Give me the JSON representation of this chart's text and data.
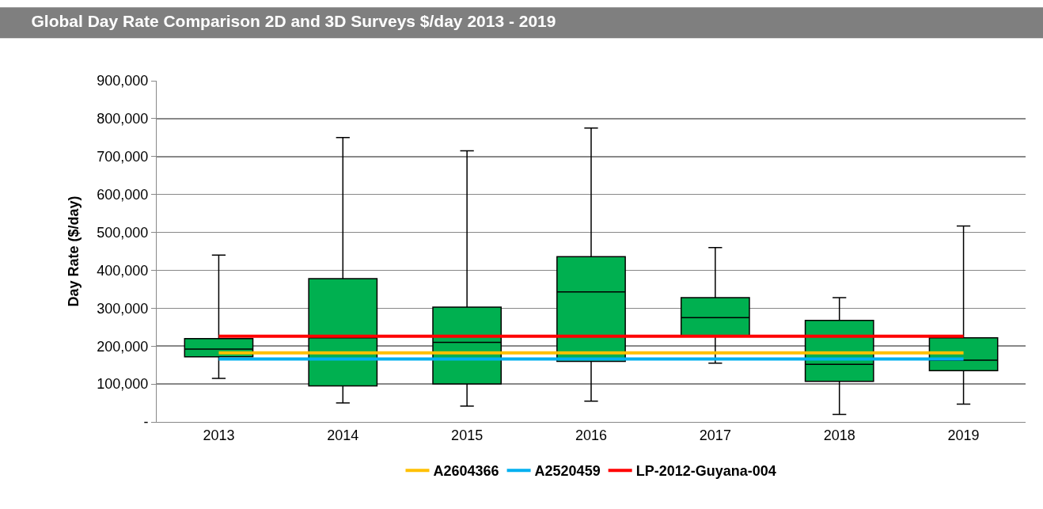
{
  "chart_data": {
    "type": "box",
    "title": "Global Day Rate Comparison 2D and 3D Surveys $/day 2013 - 2019",
    "ylabel": "Day Rate ($/day)",
    "categories": [
      "2013",
      "2014",
      "2015",
      "2016",
      "2017",
      "2018",
      "2019"
    ],
    "ylim": [
      0,
      900000
    ],
    "yticks": [
      {
        "value": 0,
        "label": "-"
      },
      {
        "value": 100000,
        "label": "100,000"
      },
      {
        "value": 200000,
        "label": "200,000"
      },
      {
        "value": 300000,
        "label": "300,000"
      },
      {
        "value": 400000,
        "label": "400,000"
      },
      {
        "value": 500000,
        "label": "500,000"
      },
      {
        "value": 600000,
        "label": "600,000"
      },
      {
        "value": 700000,
        "label": "700,000"
      },
      {
        "value": 800000,
        "label": "800,000"
      },
      {
        "value": 900000,
        "label": "900,000"
      }
    ],
    "grid": "y",
    "legend": "bottom",
    "series": [
      {
        "color": "#00b050",
        "boxes": [
          {
            "low": 115000,
            "q1": 172000,
            "median": 192000,
            "q3": 220000,
            "high": 440000
          },
          {
            "low": 50000,
            "q1": 95000,
            "median": 222000,
            "q3": 378000,
            "high": 750000
          },
          {
            "low": 42000,
            "q1": 100000,
            "median": 210000,
            "q3": 303000,
            "high": 715000
          },
          {
            "low": 55000,
            "q1": 160000,
            "median": 343000,
            "q3": 436000,
            "high": 775000
          },
          {
            "low": 155000,
            "q1": 228000,
            "median": 275000,
            "q3": 328000,
            "high": 460000
          },
          {
            "low": 20000,
            "q1": 107000,
            "median": 152000,
            "q3": 268000,
            "high": 328000
          },
          {
            "low": 47000,
            "q1": 135000,
            "median": 163000,
            "q3": 222000,
            "high": 517000
          }
        ]
      },
      {
        "type": "line",
        "name": "A2604366",
        "color": "#ffc000",
        "values": [
          182000,
          182000,
          182000,
          182000,
          182000,
          182000,
          182000
        ]
      },
      {
        "type": "line",
        "name": "A2520459",
        "color": "#00b0f0",
        "values": [
          166000,
          166000,
          166000,
          166000,
          166000,
          166000,
          166000
        ]
      },
      {
        "type": "line",
        "name": "LP-2012-Guyana-004",
        "color": "#ff0000",
        "values": [
          226000,
          226000,
          226000,
          226000,
          226000,
          226000,
          226000
        ]
      }
    ]
  }
}
